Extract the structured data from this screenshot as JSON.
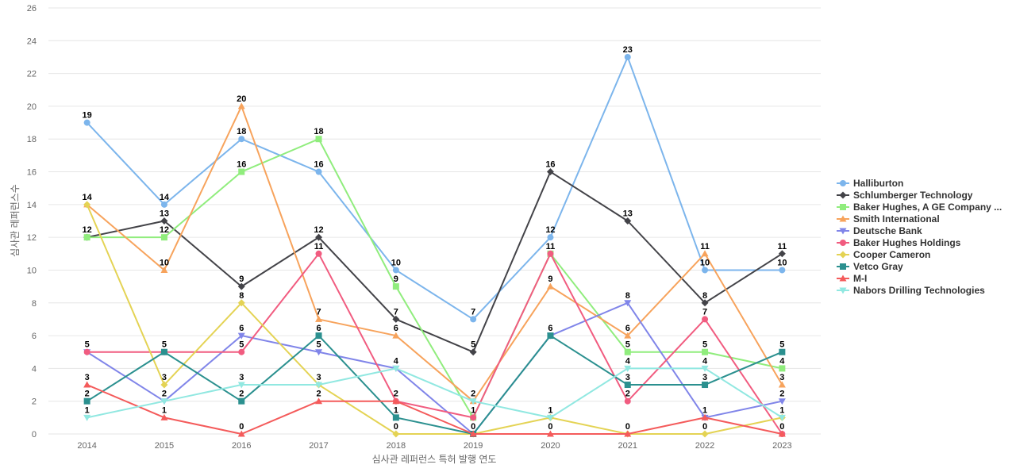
{
  "chart_data": {
    "type": "line",
    "xlabel": "심사관 레퍼런스 특허 발행 연도",
    "ylabel": "심사관 레퍼런스수",
    "x": [
      "2014",
      "2015",
      "2016",
      "2017",
      "2018",
      "2019",
      "2020",
      "2021",
      "2022",
      "2023"
    ],
    "ylim": [
      0,
      26
    ],
    "yticks": [
      0,
      2,
      4,
      6,
      8,
      10,
      12,
      14,
      16,
      18,
      20,
      22,
      24,
      26
    ],
    "grid": true,
    "legend_position": "right",
    "series": [
      {
        "name": "Halliburton",
        "color": "#7cb5ec",
        "marker": "circle",
        "values": [
          19,
          14,
          18,
          16,
          10,
          7,
          12,
          23,
          10,
          10
        ]
      },
      {
        "name": "Schlumberger Technology",
        "color": "#434348",
        "marker": "diamond",
        "values": [
          12,
          13,
          9,
          12,
          7,
          5,
          16,
          13,
          8,
          11
        ]
      },
      {
        "name": "Baker Hughes, A GE Company ...",
        "color": "#90ed7d",
        "marker": "square",
        "values": [
          12,
          12,
          16,
          18,
          9,
          1,
          11,
          5,
          5,
          4
        ]
      },
      {
        "name": "Smith International",
        "color": "#f7a35c",
        "marker": "triangle",
        "values": [
          14,
          10,
          20,
          7,
          6,
          2,
          9,
          6,
          11,
          3
        ]
      },
      {
        "name": "Deutsche Bank",
        "color": "#8085e9",
        "marker": "triangle-down",
        "values": [
          5,
          2,
          6,
          5,
          4,
          0,
          6,
          8,
          1,
          2
        ]
      },
      {
        "name": "Baker Hughes Holdings",
        "color": "#f15c80",
        "marker": "circle",
        "values": [
          5,
          5,
          5,
          11,
          2,
          1,
          11,
          2,
          7,
          0
        ]
      },
      {
        "name": "Cooper Cameron",
        "color": "#e4d354",
        "marker": "diamond",
        "values": [
          14,
          3,
          8,
          3,
          0,
          0,
          1,
          0,
          0,
          1
        ]
      },
      {
        "name": "Vetco Gray",
        "color": "#2b908f",
        "marker": "square",
        "values": [
          2,
          5,
          2,
          6,
          1,
          0,
          6,
          3,
          3,
          5
        ]
      },
      {
        "name": "M-I",
        "color": "#f45b5b",
        "marker": "triangle",
        "values": [
          3,
          1,
          0,
          2,
          2,
          0,
          0,
          0,
          1,
          0
        ]
      },
      {
        "name": "Nabors Drilling Technologies",
        "color": "#91e8e1",
        "marker": "triangle-down",
        "values": [
          1,
          2,
          3,
          3,
          4,
          2,
          1,
          4,
          4,
          1
        ]
      }
    ],
    "data_labels": [
      {
        "x": "2014",
        "y": 19,
        "text": "19"
      },
      {
        "x": "2014",
        "y": 14,
        "text": "14"
      },
      {
        "x": "2014",
        "y": 12,
        "text": "12"
      },
      {
        "x": "2014",
        "y": 5,
        "text": "5"
      },
      {
        "x": "2014",
        "y": 3,
        "text": "3"
      },
      {
        "x": "2014",
        "y": 2,
        "text": "2"
      },
      {
        "x": "2014",
        "y": 1,
        "text": "1"
      },
      {
        "x": "2015",
        "y": 14,
        "text": "14"
      },
      {
        "x": "2015",
        "y": 13,
        "text": "13"
      },
      {
        "x": "2015",
        "y": 12,
        "text": "12"
      },
      {
        "x": "2015",
        "y": 10,
        "text": "10"
      },
      {
        "x": "2015",
        "y": 5,
        "text": "5"
      },
      {
        "x": "2015",
        "y": 3,
        "text": "3"
      },
      {
        "x": "2015",
        "y": 2,
        "text": "2"
      },
      {
        "x": "2015",
        "y": 1,
        "text": "1"
      },
      {
        "x": "2016",
        "y": 20,
        "text": "20"
      },
      {
        "x": "2016",
        "y": 18,
        "text": "18"
      },
      {
        "x": "2016",
        "y": 16,
        "text": "16"
      },
      {
        "x": "2016",
        "y": 9,
        "text": "9"
      },
      {
        "x": "2016",
        "y": 8,
        "text": "8"
      },
      {
        "x": "2016",
        "y": 6,
        "text": "6"
      },
      {
        "x": "2016",
        "y": 5,
        "text": "5"
      },
      {
        "x": "2016",
        "y": 3,
        "text": "3"
      },
      {
        "x": "2016",
        "y": 2,
        "text": "2"
      },
      {
        "x": "2016",
        "y": 0,
        "text": "0"
      },
      {
        "x": "2017",
        "y": 18,
        "text": "18"
      },
      {
        "x": "2017",
        "y": 16,
        "text": "16"
      },
      {
        "x": "2017",
        "y": 12,
        "text": "12"
      },
      {
        "x": "2017",
        "y": 11,
        "text": "11"
      },
      {
        "x": "2017",
        "y": 7,
        "text": "7"
      },
      {
        "x": "2017",
        "y": 6,
        "text": "6"
      },
      {
        "x": "2017",
        "y": 5,
        "text": "5"
      },
      {
        "x": "2017",
        "y": 3,
        "text": "3"
      },
      {
        "x": "2017",
        "y": 2,
        "text": "2"
      },
      {
        "x": "2018",
        "y": 10,
        "text": "10"
      },
      {
        "x": "2018",
        "y": 9,
        "text": "9"
      },
      {
        "x": "2018",
        "y": 7,
        "text": "7"
      },
      {
        "x": "2018",
        "y": 6,
        "text": "6"
      },
      {
        "x": "2018",
        "y": 4,
        "text": "4"
      },
      {
        "x": "2018",
        "y": 2,
        "text": "2"
      },
      {
        "x": "2018",
        "y": 1,
        "text": "1"
      },
      {
        "x": "2018",
        "y": 0,
        "text": "0"
      },
      {
        "x": "2019",
        "y": 7,
        "text": "7"
      },
      {
        "x": "2019",
        "y": 5,
        "text": "5"
      },
      {
        "x": "2019",
        "y": 2,
        "text": "2"
      },
      {
        "x": "2019",
        "y": 1,
        "text": "1"
      },
      {
        "x": "2019",
        "y": 0,
        "text": "0"
      },
      {
        "x": "2020",
        "y": 16,
        "text": "16"
      },
      {
        "x": "2020",
        "y": 12,
        "text": "12"
      },
      {
        "x": "2020",
        "y": 11,
        "text": "11"
      },
      {
        "x": "2020",
        "y": 9,
        "text": "9"
      },
      {
        "x": "2020",
        "y": 6,
        "text": "6"
      },
      {
        "x": "2020",
        "y": 1,
        "text": "1"
      },
      {
        "x": "2020",
        "y": 0,
        "text": "0"
      },
      {
        "x": "2021",
        "y": 23,
        "text": "23"
      },
      {
        "x": "2021",
        "y": 13,
        "text": "13"
      },
      {
        "x": "2021",
        "y": 8,
        "text": "8"
      },
      {
        "x": "2021",
        "y": 6,
        "text": "6"
      },
      {
        "x": "2021",
        "y": 5,
        "text": "5"
      },
      {
        "x": "2021",
        "y": 4,
        "text": "4"
      },
      {
        "x": "2021",
        "y": 3,
        "text": "3"
      },
      {
        "x": "2021",
        "y": 2,
        "text": "2"
      },
      {
        "x": "2021",
        "y": 0,
        "text": "0"
      },
      {
        "x": "2022",
        "y": 11,
        "text": "11"
      },
      {
        "x": "2022",
        "y": 10,
        "text": "10"
      },
      {
        "x": "2022",
        "y": 8,
        "text": "8"
      },
      {
        "x": "2022",
        "y": 7,
        "text": "7"
      },
      {
        "x": "2022",
        "y": 5,
        "text": "5"
      },
      {
        "x": "2022",
        "y": 4,
        "text": "4"
      },
      {
        "x": "2022",
        "y": 3,
        "text": "3"
      },
      {
        "x": "2022",
        "y": 1,
        "text": "1"
      },
      {
        "x": "2022",
        "y": 0,
        "text": "0"
      },
      {
        "x": "2023",
        "y": 11,
        "text": "11"
      },
      {
        "x": "2023",
        "y": 10,
        "text": "10"
      },
      {
        "x": "2023",
        "y": 5,
        "text": "5"
      },
      {
        "x": "2023",
        "y": 4,
        "text": "4"
      },
      {
        "x": "2023",
        "y": 3,
        "text": "3"
      },
      {
        "x": "2023",
        "y": 2,
        "text": "2"
      },
      {
        "x": "2023",
        "y": 1,
        "text": "1"
      },
      {
        "x": "2023",
        "y": 0,
        "text": "0"
      }
    ]
  }
}
